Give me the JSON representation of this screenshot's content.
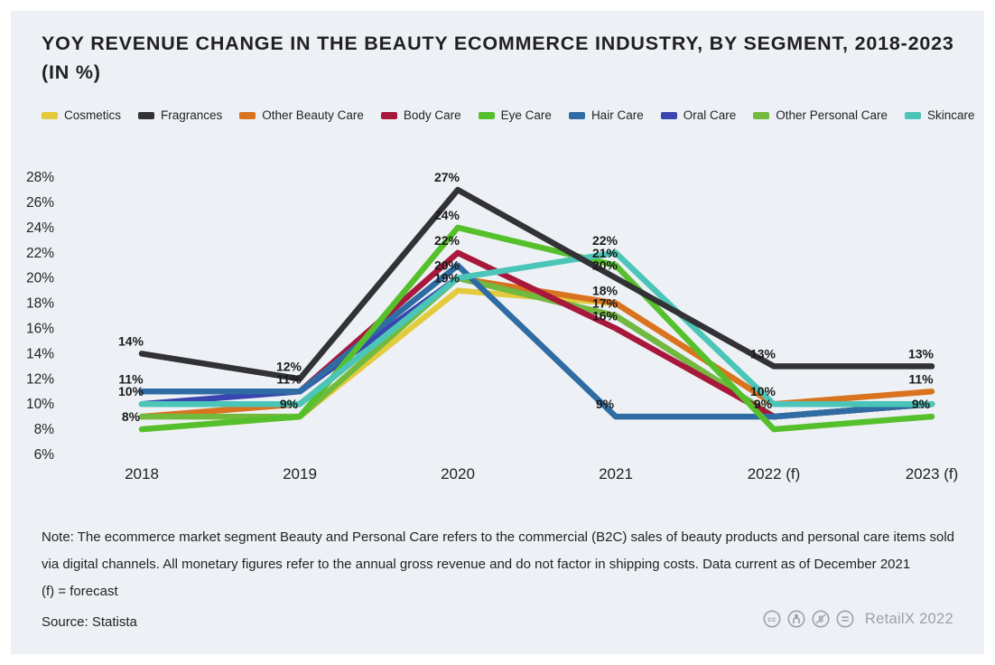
{
  "title": "YOY REVENUE CHANGE IN THE BEAUTY ECOMMERCE INDUSTRY, BY SEGMENT, 2018-2023 (IN %)",
  "chart_data": {
    "type": "line",
    "x": [
      "2018",
      "2019",
      "2020",
      "2021",
      "2022 (f)",
      "2023 (f)"
    ],
    "ylabel": "",
    "xlabel": "",
    "ylim": [
      6,
      28
    ],
    "ytick_step": 2,
    "ytick_suffix": "%",
    "grid": false,
    "legend_position": "top",
    "series": [
      {
        "name": "Cosmetics",
        "color": "#e3cb3d",
        "values": [
          8,
          9,
          19,
          18,
          10,
          10
        ]
      },
      {
        "name": "Fragrances",
        "color": "#323135",
        "values": [
          14,
          12,
          27,
          20,
          13,
          13
        ]
      },
      {
        "name": "Other Beauty Care",
        "color": "#d9731f",
        "values": [
          9,
          10,
          20,
          18,
          10,
          11
        ]
      },
      {
        "name": "Body Care",
        "color": "#a8173c",
        "values": [
          11,
          11,
          22,
          16,
          9,
          10
        ]
      },
      {
        "name": "Eye Care",
        "color": "#55c02c",
        "values": [
          8,
          9,
          24,
          21,
          8,
          9
        ]
      },
      {
        "name": "Hair Care",
        "color": "#2e6ca3",
        "values": [
          11,
          11,
          21,
          9,
          9,
          10
        ]
      },
      {
        "name": "Oral Care",
        "color": "#3a45b0",
        "values": [
          10,
          11,
          20,
          17,
          9,
          10
        ]
      },
      {
        "name": "Other Personal Care",
        "color": "#72ba3e",
        "values": [
          9,
          9,
          20,
          17,
          9,
          10
        ]
      },
      {
        "name": "Skincare",
        "color": "#4cc5b9",
        "values": [
          10,
          10,
          20,
          22,
          10,
          10
        ]
      }
    ],
    "point_labels": [
      {
        "series": "Fragrances",
        "index": 0,
        "text": "14%"
      },
      {
        "series": "Hair Care",
        "index": 0,
        "text": "11%"
      },
      {
        "series": "Oral Care",
        "index": 0,
        "text": "10%"
      },
      {
        "series": "Cosmetics",
        "index": 0,
        "text": "8%"
      },
      {
        "series": "Fragrances",
        "index": 1,
        "text": "12%"
      },
      {
        "series": "Hair Care",
        "index": 1,
        "text": "11%"
      },
      {
        "series": "Cosmetics",
        "index": 1,
        "text": "9%"
      },
      {
        "series": "Fragrances",
        "index": 2,
        "text": "27%"
      },
      {
        "series": "Eye Care",
        "index": 2,
        "text": "24%"
      },
      {
        "series": "Body Care",
        "index": 2,
        "text": "22%"
      },
      {
        "series": "Oral Care",
        "index": 2,
        "text": "20%"
      },
      {
        "series": "Cosmetics",
        "index": 2,
        "text": "19%"
      },
      {
        "series": "Skincare",
        "index": 3,
        "text": "22%"
      },
      {
        "series": "Eye Care",
        "index": 3,
        "text": "21%"
      },
      {
        "series": "Fragrances",
        "index": 3,
        "text": "20%"
      },
      {
        "series": "Other Beauty Care",
        "index": 3,
        "text": "18%"
      },
      {
        "series": "Oral Care",
        "index": 3,
        "text": "17%"
      },
      {
        "series": "Body Care",
        "index": 3,
        "text": "16%"
      },
      {
        "series": "Hair Care",
        "index": 3,
        "text": "9%"
      },
      {
        "series": "Fragrances",
        "index": 4,
        "text": "13%"
      },
      {
        "series": "Other Beauty Care",
        "index": 4,
        "text": "10%"
      },
      {
        "series": "Body Care",
        "index": 4,
        "text": "9%"
      },
      {
        "series": "Fragrances",
        "index": 5,
        "text": "13%"
      },
      {
        "series": "Other Beauty Care",
        "index": 5,
        "text": "11%"
      },
      {
        "series": "Eye Care",
        "index": 5,
        "text": "9%"
      }
    ]
  },
  "footer": {
    "note": "Note: The ecommerce market segment Beauty and Personal Care refers to the commercial (B2C) sales of beauty products and personal care items sold via digital channels. All monetary figures refer to the annual gross revenue and do not factor in shipping costs. Data current as of December 2021",
    "forecast_note": "(f) = forecast",
    "source": "Source: Statista",
    "brand": "RetailX 2022",
    "license_icons": [
      "cc-icon",
      "attribution-icon",
      "non-commercial-icon",
      "no-derivatives-icon"
    ]
  },
  "colors": {
    "panel_bg": "#edf1f5",
    "page_bg": "#ffffff",
    "text": "#211f20",
    "muted": "#9aa1a8"
  }
}
